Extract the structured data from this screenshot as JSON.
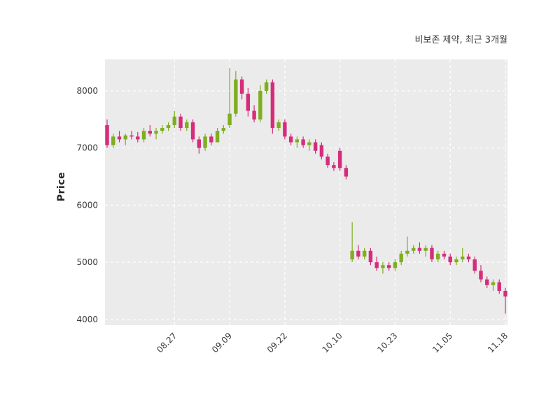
{
  "header": {
    "title": "비보존 제약, 최근 3개월"
  },
  "chart_data": {
    "type": "candlestick",
    "title": "비보존 제약, 최근 3개월",
    "ylabel": "Price",
    "xlabel": "",
    "ylim": [
      3900,
      8550
    ],
    "grid": "on",
    "yticks": [
      4000,
      5000,
      6000,
      7000,
      8000
    ],
    "xticks": [
      {
        "label": "08.27",
        "index": 11
      },
      {
        "label": "09.09",
        "index": 20
      },
      {
        "label": "09.22",
        "index": 29
      },
      {
        "label": "10.10",
        "index": 38
      },
      {
        "label": "10.23",
        "index": 47
      },
      {
        "label": "11.05",
        "index": 56
      },
      {
        "label": "11.18",
        "index": 65
      }
    ],
    "colors": {
      "up": "#7fae1f",
      "down": "#d42e7b",
      "plot_background": "#ebebeb",
      "grid": "#ffffff",
      "text": "#3a3a3a"
    },
    "ohlc": [
      [
        7400,
        7500,
        7000,
        7050
      ],
      [
        7050,
        7250,
        7000,
        7200
      ],
      [
        7200,
        7300,
        7100,
        7150
      ],
      [
        7150,
        7250,
        7050,
        7220
      ],
      [
        7220,
        7300,
        7150,
        7200
      ],
      [
        7200,
        7280,
        7100,
        7150
      ],
      [
        7150,
        7350,
        7100,
        7300
      ],
      [
        7300,
        7400,
        7200,
        7250
      ],
      [
        7250,
        7350,
        7150,
        7300
      ],
      [
        7300,
        7400,
        7250,
        7350
      ],
      [
        7350,
        7450,
        7300,
        7400
      ],
      [
        7400,
        7650,
        7350,
        7550
      ],
      [
        7550,
        7600,
        7300,
        7350
      ],
      [
        7350,
        7500,
        7300,
        7450
      ],
      [
        7450,
        7500,
        7100,
        7150
      ],
      [
        7150,
        7200,
        6900,
        7000
      ],
      [
        7000,
        7250,
        6950,
        7200
      ],
      [
        7200,
        7250,
        7050,
        7100
      ],
      [
        7100,
        7350,
        7100,
        7300
      ],
      [
        7300,
        7400,
        7250,
        7350
      ],
      [
        7400,
        8400,
        7350,
        7600
      ],
      [
        7600,
        8350,
        7550,
        8200
      ],
      [
        8200,
        8250,
        7850,
        7950
      ],
      [
        7950,
        8050,
        7550,
        7650
      ],
      [
        7650,
        7750,
        7450,
        7500
      ],
      [
        7500,
        8100,
        7450,
        8000
      ],
      [
        8000,
        8200,
        7950,
        8150
      ],
      [
        8150,
        8200,
        7250,
        7350
      ],
      [
        7350,
        7500,
        7300,
        7450
      ],
      [
        7450,
        7500,
        7150,
        7200
      ],
      [
        7200,
        7250,
        7050,
        7100
      ],
      [
        7100,
        7200,
        7000,
        7150
      ],
      [
        7150,
        7200,
        7000,
        7050
      ],
      [
        7050,
        7150,
        6950,
        7100
      ],
      [
        7100,
        7150,
        6900,
        6950
      ],
      [
        7050,
        7100,
        6800,
        6850
      ],
      [
        6850,
        6900,
        6650,
        6700
      ],
      [
        6700,
        6750,
        6600,
        6650
      ],
      [
        6950,
        7000,
        6600,
        6650
      ],
      [
        6650,
        6700,
        6450,
        6500
      ],
      [
        5050,
        5700,
        5000,
        5200
      ],
      [
        5200,
        5300,
        5050,
        5100
      ],
      [
        5100,
        5250,
        5050,
        5200
      ],
      [
        5200,
        5250,
        4950,
        5000
      ],
      [
        5000,
        5100,
        4850,
        4900
      ],
      [
        4900,
        5000,
        4800,
        4950
      ],
      [
        4950,
        5000,
        4850,
        4900
      ],
      [
        4900,
        5050,
        4850,
        5000
      ],
      [
        5000,
        5200,
        4950,
        5150
      ],
      [
        5150,
        5450,
        5100,
        5200
      ],
      [
        5200,
        5300,
        5150,
        5250
      ],
      [
        5250,
        5350,
        5150,
        5200
      ],
      [
        5200,
        5300,
        5100,
        5250
      ],
      [
        5250,
        5300,
        5000,
        5050
      ],
      [
        5050,
        5200,
        5000,
        5150
      ],
      [
        5150,
        5200,
        5050,
        5100
      ],
      [
        5100,
        5150,
        4950,
        5000
      ],
      [
        5000,
        5100,
        4950,
        5050
      ],
      [
        5050,
        5250,
        5000,
        5100
      ],
      [
        5100,
        5150,
        5000,
        5050
      ],
      [
        5050,
        5100,
        4800,
        4850
      ],
      [
        4850,
        4950,
        4650,
        4700
      ],
      [
        4700,
        4750,
        4550,
        4600
      ],
      [
        4600,
        4700,
        4500,
        4650
      ],
      [
        4650,
        4700,
        4450,
        4500
      ],
      [
        4500,
        4550,
        4100,
        4400
      ]
    ]
  }
}
